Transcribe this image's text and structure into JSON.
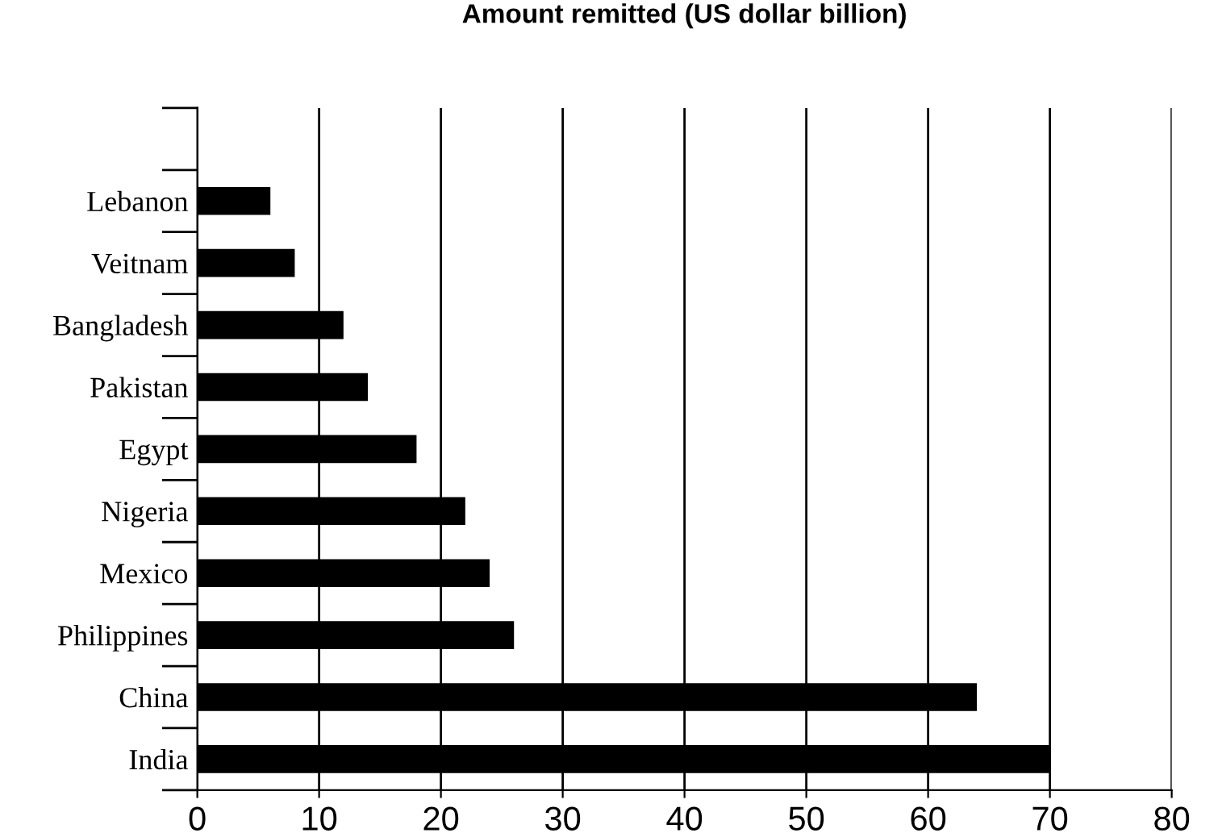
{
  "chart_data": {
    "type": "bar",
    "orientation": "horizontal",
    "title": "Amount remitted (US dollar billion)",
    "categories": [
      "Lebanon",
      "Veitnam",
      "Bangladesh",
      "Pakistan",
      "Egypt",
      "Nigeria",
      "Mexico",
      "Philippines",
      "China",
      "India"
    ],
    "values": [
      6,
      8,
      12,
      14,
      18,
      22,
      24,
      26,
      64,
      70
    ],
    "color": "#000000",
    "xlim": [
      0,
      80
    ],
    "xticks": [
      0,
      10,
      20,
      30,
      40,
      50,
      60,
      70,
      80
    ],
    "grid": "x",
    "legend": false
  }
}
